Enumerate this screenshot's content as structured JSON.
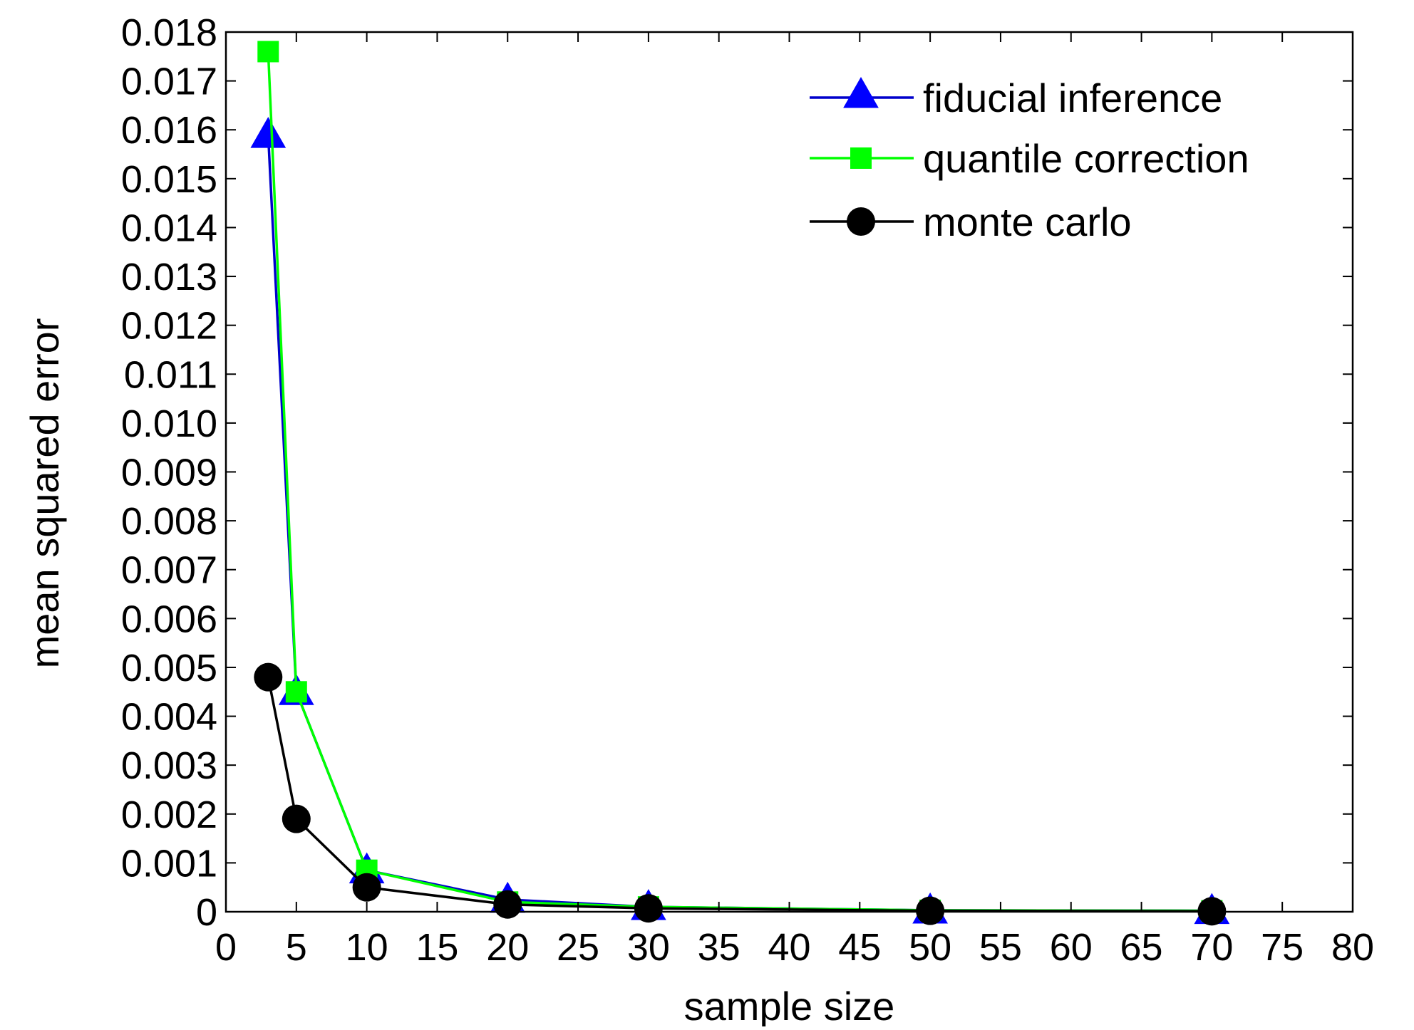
{
  "chart_data": {
    "type": "line",
    "xlabel": "sample size",
    "ylabel": "mean squared error",
    "xlim": [
      0,
      80
    ],
    "ylim": [
      0,
      0.018
    ],
    "xticks": [
      0,
      5,
      10,
      15,
      20,
      25,
      30,
      35,
      40,
      45,
      50,
      55,
      60,
      65,
      70,
      75,
      80
    ],
    "xtick_labels": [
      "0",
      "5",
      "10",
      "15",
      "20",
      "25",
      "30",
      "35",
      "40",
      "45",
      "50",
      "55",
      "60",
      "65",
      "70",
      "75",
      "80"
    ],
    "yticks": [
      0,
      0.001,
      0.002,
      0.003,
      0.004,
      0.005,
      0.006,
      0.007,
      0.008,
      0.009,
      0.01,
      0.011,
      0.012,
      0.013,
      0.014,
      0.015,
      0.016,
      0.017,
      0.018
    ],
    "ytick_labels": [
      "0",
      "0.001",
      "0.002",
      "0.003",
      "0.004",
      "0.005",
      "0.006",
      "0.007",
      "0.008",
      "0.009",
      "0.010",
      "0.011",
      "0.012",
      "0.013",
      "0.014",
      "0.015",
      "0.016",
      "0.017",
      "0.018"
    ],
    "grid": false,
    "legend_position": "top-right",
    "series": [
      {
        "name": "fiducial inference",
        "color": "#0000ff",
        "line_color": "#0000cc",
        "marker": "triangle",
        "x": [
          3,
          5,
          10,
          20,
          30,
          50,
          70
        ],
        "y": [
          0.0159,
          0.0045,
          0.00085,
          0.00025,
          0.0001,
          3e-05,
          2e-05
        ]
      },
      {
        "name": "quantile correction",
        "color": "#00ff00",
        "line_color": "#00ff00",
        "marker": "square",
        "x": [
          3,
          5,
          10,
          20,
          30,
          50,
          70
        ],
        "y": [
          0.0176,
          0.0045,
          0.00085,
          0.0002,
          0.0001,
          3e-05,
          2e-05
        ]
      },
      {
        "name": "monte carlo",
        "color": "#000000",
        "line_color": "#000000",
        "marker": "circle",
        "x": [
          3,
          5,
          10,
          20,
          30,
          50,
          70
        ],
        "y": [
          0.0048,
          0.0019,
          0.0005,
          0.00015,
          7e-05,
          2e-05,
          1e-05
        ]
      }
    ]
  }
}
